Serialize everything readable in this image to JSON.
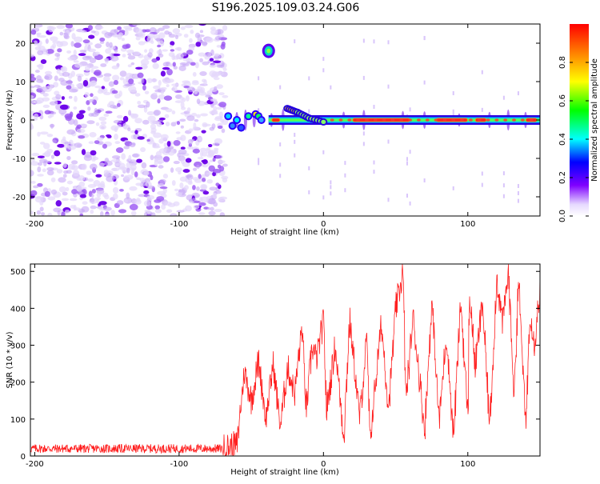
{
  "title": "S196.2025.109.03.24.G06",
  "chart_data": [
    {
      "type": "heatmap",
      "xlabel": "Height of straight line (km)",
      "ylabel": "Frequency (Hz)",
      "xlim": [
        -203,
        150
      ],
      "ylim": [
        -25,
        25
      ],
      "xticks": [
        -200,
        -100,
        0,
        100
      ],
      "yticks": [
        -20,
        -10,
        0,
        10,
        20
      ],
      "colorbar": {
        "label": "Normalized spectral amplitude",
        "range": [
          0,
          1
        ],
        "ticks": [
          0.0,
          0.2,
          0.4,
          0.6,
          0.8
        ]
      },
      "noise_region_x": [
        -203,
        -68
      ],
      "tone_line": {
        "x_range": [
          -38,
          150
        ],
        "frequency": 0,
        "strong_segments_x": [
          [
            -36,
            -30
          ],
          [
            20,
            60
          ],
          [
            78,
            100
          ],
          [
            105,
            113
          ],
          [
            140,
            148
          ]
        ]
      },
      "features": [
        {
          "name": "burst",
          "x": -38,
          "frequency": 18
        },
        {
          "name": "curve",
          "x": [
            -25,
            -18,
            -10,
            0
          ],
          "frequency": [
            3,
            2,
            0.5,
            -0.5
          ]
        }
      ]
    },
    {
      "type": "line",
      "xlabel": "Height of straight line (km)",
      "ylabel": "SNR (10 * v/v)",
      "xlim": [
        -203,
        150
      ],
      "ylim": [
        0,
        520
      ],
      "xticks": [
        -200,
        -100,
        0,
        100
      ],
      "yticks": [
        0,
        100,
        200,
        300,
        400,
        500
      ],
      "color": "#ff2020",
      "series": [
        {
          "x": [
            -203,
            -70,
            -60,
            -55,
            -50,
            -45,
            -40,
            -35,
            -30,
            -25,
            -20,
            -15,
            -12,
            -8,
            -5,
            0,
            2,
            8,
            14,
            18,
            25,
            30,
            32,
            40,
            45,
            50,
            55,
            57,
            62,
            70,
            75,
            80,
            85,
            90,
            95,
            100,
            101,
            105,
            110,
            115,
            120,
            124,
            128,
            132,
            135,
            140,
            143,
            146,
            150
          ],
          "y": [
            20,
            20,
            30,
            230,
            150,
            260,
            100,
            250,
            80,
            240,
            170,
            350,
            120,
            300,
            260,
            370,
            120,
            300,
            50,
            370,
            100,
            320,
            40,
            360,
            130,
            400,
            500,
            150,
            380,
            70,
            420,
            90,
            330,
            50,
            420,
            100,
            450,
            240,
            420,
            80,
            480,
            360,
            500,
            160,
            480,
            80,
            400,
            300,
            460
          ]
        }
      ]
    }
  ]
}
